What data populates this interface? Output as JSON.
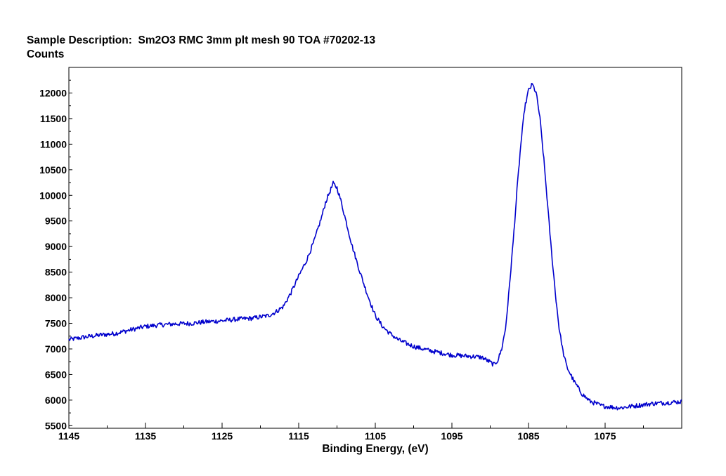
{
  "header": {
    "title": "Sample Description:  Sm2O3 RMC 3mm plt mesh 90 TOA #70202-13"
  },
  "chart_data": {
    "type": "line",
    "title": "Sample Description:  Sm2O3 RMC 3mm plt mesh 90 TOA #70202-13",
    "xlabel": "Binding Energy, (eV)",
    "ylabel": "Counts",
    "x_reversed": true,
    "xlim": [
      1065,
      1145
    ],
    "ylim": [
      5450,
      12500
    ],
    "x_ticks": [
      1145,
      1135,
      1125,
      1115,
      1105,
      1095,
      1085,
      1075
    ],
    "x_ticks_label": [
      "1145",
      "1135",
      "1125",
      "1115",
      "1105",
      "1095",
      "1085",
      "1075"
    ],
    "y_ticks": [
      5500,
      6000,
      6500,
      7000,
      7500,
      8000,
      8500,
      9000,
      9500,
      10000,
      10500,
      11000,
      11500,
      12000
    ],
    "y_ticks_label": [
      "5500",
      "6000",
      "6500",
      "7000",
      "7500",
      "8000",
      "8500",
      "9000",
      "9500",
      "10000",
      "10500",
      "11000",
      "11500",
      "12000"
    ],
    "grid": false,
    "line_color": "#0000cc",
    "series": [
      {
        "name": "",
        "x": [
          1145,
          1143,
          1141,
          1139,
          1137,
          1135,
          1133,
          1131,
          1129,
          1127,
          1125,
          1123,
          1121,
          1119,
          1118,
          1117,
          1116,
          1115,
          1114,
          1113,
          1112,
          1111.5,
          1111,
          1110.5,
          1110,
          1109.5,
          1109,
          1108.5,
          1108,
          1107,
          1106,
          1105,
          1104,
          1103,
          1102,
          1101,
          1100,
          1099,
          1098,
          1097,
          1096,
          1095,
          1094,
          1093,
          1092,
          1091,
          1090,
          1089.5,
          1089,
          1088.5,
          1088,
          1087.5,
          1087,
          1086.5,
          1086,
          1085.5,
          1085,
          1084.5,
          1084,
          1083.5,
          1083,
          1082.5,
          1082,
          1081.5,
          1081,
          1080.5,
          1080,
          1079,
          1078,
          1077,
          1076,
          1075.5,
          1075,
          1074,
          1073,
          1072,
          1071,
          1070,
          1069,
          1068,
          1067,
          1066,
          1065
        ],
        "y": [
          7180,
          7230,
          7270,
          7300,
          7370,
          7440,
          7470,
          7490,
          7500,
          7530,
          7550,
          7580,
          7600,
          7650,
          7720,
          7830,
          8100,
          8420,
          8720,
          9100,
          9580,
          9860,
          10050,
          10230,
          10150,
          9900,
          9600,
          9300,
          9000,
          8500,
          8050,
          7650,
          7430,
          7290,
          7180,
          7110,
          7050,
          7010,
          6970,
          6940,
          6910,
          6880,
          6870,
          6860,
          6850,
          6830,
          6740,
          6690,
          6780,
          7000,
          7400,
          8200,
          9100,
          10100,
          11000,
          11700,
          12050,
          12170,
          12000,
          11500,
          10700,
          9800,
          8900,
          8100,
          7400,
          6950,
          6650,
          6350,
          6120,
          5980,
          5920,
          5890,
          5880,
          5860,
          5850,
          5870,
          5890,
          5910,
          5930,
          5940,
          5950,
          5960,
          5970
        ]
      }
    ]
  }
}
